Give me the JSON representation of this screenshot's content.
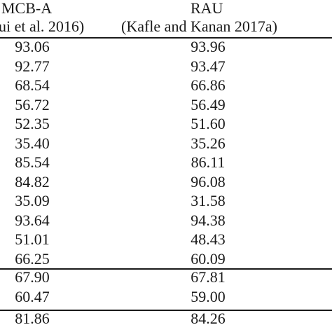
{
  "table": {
    "columns": [
      {
        "title": "MCB-A",
        "citation": "ui et al. 2016)"
      },
      {
        "title": "RAU",
        "citation": "(Kafle and Kanan 2017a)"
      }
    ],
    "groups": [
      {
        "rows": [
          [
            "93.06",
            "93.96"
          ],
          [
            "92.77",
            "93.47"
          ],
          [
            "68.54",
            "66.86"
          ],
          [
            "56.72",
            "56.49"
          ],
          [
            "52.35",
            "51.60"
          ],
          [
            "35.40",
            "35.26"
          ],
          [
            "85.54",
            "86.11"
          ],
          [
            "84.82",
            "96.08"
          ],
          [
            "35.09",
            "31.58"
          ],
          [
            "93.64",
            "94.38"
          ],
          [
            "51.01",
            "48.43"
          ],
          [
            "66.25",
            "60.09"
          ]
        ]
      },
      {
        "rows": [
          [
            "67.90",
            "67.81"
          ],
          [
            "60.47",
            "59.00"
          ]
        ]
      },
      {
        "rows": [
          [
            "81.86",
            "84.26"
          ]
        ]
      }
    ]
  }
}
